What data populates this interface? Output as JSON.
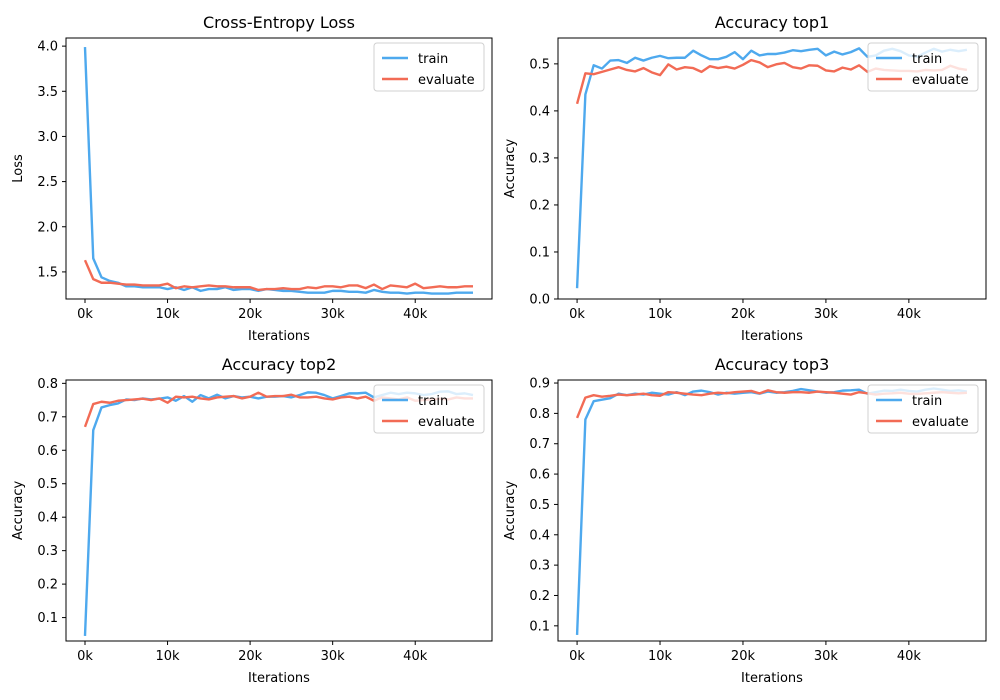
{
  "colors": {
    "train": "#4ea9ee",
    "evaluate": "#f26b55"
  },
  "legend": {
    "placement": "top-right",
    "entries": [
      "train",
      "evaluate"
    ]
  },
  "chart_data": [
    {
      "type": "line",
      "title": "Cross-Entropy Loss",
      "xlabel": "Iterations",
      "ylabel": "Loss",
      "xlim": [
        -2300,
        49300
      ],
      "ylim": [
        1.2,
        4.09
      ],
      "x_ticks": [
        0,
        10000,
        20000,
        30000,
        40000
      ],
      "x_tick_labels": [
        "0k",
        "10k",
        "20k",
        "30k",
        "40k"
      ],
      "y_ticks": [
        1.5,
        2.0,
        2.5,
        3.0,
        3.5,
        4.0
      ],
      "y_tick_labels": [
        "1.5",
        "2.0",
        "2.5",
        "3.0",
        "3.5",
        "4.0"
      ],
      "series": [
        {
          "name": "train",
          "x": [
            0,
            1000,
            2000,
            3000,
            4000,
            5000,
            6000,
            7000,
            8000,
            9000,
            10000,
            11000,
            12000,
            13000,
            14000,
            15000,
            16000,
            17000,
            18000,
            19000,
            20000,
            21000,
            22000,
            23000,
            24000,
            25000,
            26000,
            27000,
            28000,
            29000,
            30000,
            31000,
            32000,
            33000,
            34000,
            35000,
            36000,
            37000,
            38000,
            39000,
            40000,
            41000,
            42000,
            43000,
            44000,
            45000,
            46000,
            47000
          ],
          "y": [
            3.99,
            1.65,
            1.44,
            1.4,
            1.38,
            1.34,
            1.34,
            1.33,
            1.33,
            1.33,
            1.31,
            1.33,
            1.3,
            1.33,
            1.29,
            1.31,
            1.31,
            1.33,
            1.3,
            1.31,
            1.31,
            1.29,
            1.31,
            1.3,
            1.29,
            1.29,
            1.28,
            1.27,
            1.27,
            1.27,
            1.29,
            1.29,
            1.28,
            1.28,
            1.27,
            1.3,
            1.28,
            1.27,
            1.27,
            1.26,
            1.27,
            1.27,
            1.26,
            1.26,
            1.26,
            1.27,
            1.27,
            1.27
          ]
        },
        {
          "name": "evaluate",
          "x": [
            0,
            1000,
            2000,
            3000,
            4000,
            5000,
            6000,
            7000,
            8000,
            9000,
            10000,
            11000,
            12000,
            13000,
            14000,
            15000,
            16000,
            17000,
            18000,
            19000,
            20000,
            21000,
            22000,
            23000,
            24000,
            25000,
            26000,
            27000,
            28000,
            29000,
            30000,
            31000,
            32000,
            33000,
            34000,
            35000,
            36000,
            37000,
            38000,
            39000,
            40000,
            41000,
            42000,
            43000,
            44000,
            45000,
            46000,
            47000
          ],
          "y": [
            1.63,
            1.42,
            1.38,
            1.38,
            1.37,
            1.36,
            1.36,
            1.35,
            1.35,
            1.35,
            1.37,
            1.32,
            1.34,
            1.33,
            1.34,
            1.35,
            1.34,
            1.34,
            1.33,
            1.33,
            1.33,
            1.3,
            1.31,
            1.31,
            1.32,
            1.31,
            1.31,
            1.33,
            1.32,
            1.34,
            1.34,
            1.33,
            1.35,
            1.35,
            1.32,
            1.36,
            1.31,
            1.35,
            1.34,
            1.33,
            1.37,
            1.32,
            1.33,
            1.34,
            1.33,
            1.33,
            1.34,
            1.34
          ]
        }
      ]
    },
    {
      "type": "line",
      "title": "Accuracy top1",
      "xlabel": "Iterations",
      "ylabel": "Accuracy",
      "xlim": [
        -2300,
        49300
      ],
      "ylim": [
        0.0,
        0.555
      ],
      "x_ticks": [
        0,
        10000,
        20000,
        30000,
        40000
      ],
      "x_tick_labels": [
        "0k",
        "10k",
        "20k",
        "30k",
        "40k"
      ],
      "y_ticks": [
        0.0,
        0.1,
        0.2,
        0.3,
        0.4,
        0.5
      ],
      "y_tick_labels": [
        "0.0",
        "0.1",
        "0.2",
        "0.3",
        "0.4",
        "0.5"
      ],
      "series": [
        {
          "name": "train",
          "x": [
            0,
            1000,
            2000,
            3000,
            4000,
            5000,
            6000,
            7000,
            8000,
            9000,
            10000,
            11000,
            12000,
            13000,
            14000,
            15000,
            16000,
            17000,
            18000,
            19000,
            20000,
            21000,
            22000,
            23000,
            24000,
            25000,
            26000,
            27000,
            28000,
            29000,
            30000,
            31000,
            32000,
            33000,
            34000,
            35000,
            36000,
            37000,
            38000,
            39000,
            40000,
            41000,
            42000,
            43000,
            44000,
            45000,
            46000,
            47000
          ],
          "y": [
            0.023,
            0.435,
            0.497,
            0.49,
            0.507,
            0.508,
            0.502,
            0.513,
            0.507,
            0.513,
            0.517,
            0.512,
            0.513,
            0.513,
            0.528,
            0.518,
            0.51,
            0.51,
            0.515,
            0.525,
            0.51,
            0.528,
            0.518,
            0.521,
            0.521,
            0.524,
            0.529,
            0.527,
            0.53,
            0.532,
            0.518,
            0.526,
            0.52,
            0.525,
            0.533,
            0.515,
            0.518,
            0.528,
            0.532,
            0.527,
            0.518,
            0.515,
            0.524,
            0.532,
            0.526,
            0.53,
            0.527,
            0.53
          ]
        },
        {
          "name": "evaluate",
          "x": [
            0,
            1000,
            2000,
            3000,
            4000,
            5000,
            6000,
            7000,
            8000,
            9000,
            10000,
            11000,
            12000,
            13000,
            14000,
            15000,
            16000,
            17000,
            18000,
            19000,
            20000,
            21000,
            22000,
            23000,
            24000,
            25000,
            26000,
            27000,
            28000,
            29000,
            30000,
            31000,
            32000,
            33000,
            34000,
            35000,
            36000,
            37000,
            38000,
            39000,
            40000,
            41000,
            42000,
            43000,
            44000,
            45000,
            46000,
            47000
          ],
          "y": [
            0.415,
            0.48,
            0.478,
            0.483,
            0.488,
            0.493,
            0.487,
            0.484,
            0.491,
            0.482,
            0.476,
            0.499,
            0.488,
            0.493,
            0.491,
            0.483,
            0.495,
            0.491,
            0.494,
            0.49,
            0.498,
            0.508,
            0.503,
            0.493,
            0.499,
            0.502,
            0.493,
            0.49,
            0.497,
            0.496,
            0.486,
            0.484,
            0.492,
            0.488,
            0.497,
            0.483,
            0.49,
            0.487,
            0.486,
            0.485,
            0.485,
            0.484,
            0.487,
            0.486,
            0.487,
            0.496,
            0.49,
            0.487
          ]
        }
      ]
    },
    {
      "type": "line",
      "title": "Accuracy top2",
      "xlabel": "Iterations",
      "ylabel": "Accuracy",
      "xlim": [
        -2300,
        49300
      ],
      "ylim": [
        0.03,
        0.81
      ],
      "x_ticks": [
        0,
        10000,
        20000,
        30000,
        40000
      ],
      "x_tick_labels": [
        "0k",
        "10k",
        "20k",
        "30k",
        "40k"
      ],
      "y_ticks": [
        0.1,
        0.2,
        0.3,
        0.4,
        0.5,
        0.6,
        0.7,
        0.8
      ],
      "y_tick_labels": [
        "0.1",
        "0.2",
        "0.3",
        "0.4",
        "0.5",
        "0.6",
        "0.7",
        "0.8"
      ],
      "series": [
        {
          "name": "train",
          "x": [
            0,
            1000,
            2000,
            3000,
            4000,
            5000,
            6000,
            7000,
            8000,
            9000,
            10000,
            11000,
            12000,
            13000,
            14000,
            15000,
            16000,
            17000,
            18000,
            19000,
            20000,
            21000,
            22000,
            23000,
            24000,
            25000,
            26000,
            27000,
            28000,
            29000,
            30000,
            31000,
            32000,
            33000,
            34000,
            35000,
            36000,
            37000,
            38000,
            39000,
            40000,
            41000,
            42000,
            43000,
            44000,
            45000,
            46000,
            47000
          ],
          "y": [
            0.045,
            0.66,
            0.728,
            0.735,
            0.74,
            0.752,
            0.75,
            0.755,
            0.752,
            0.754,
            0.758,
            0.748,
            0.762,
            0.745,
            0.765,
            0.755,
            0.766,
            0.755,
            0.762,
            0.758,
            0.76,
            0.755,
            0.76,
            0.76,
            0.762,
            0.758,
            0.765,
            0.773,
            0.772,
            0.765,
            0.755,
            0.762,
            0.77,
            0.77,
            0.772,
            0.758,
            0.765,
            0.772,
            0.768,
            0.772,
            0.77,
            0.765,
            0.768,
            0.775,
            0.776,
            0.768,
            0.77,
            0.765
          ]
        },
        {
          "name": "evaluate",
          "x": [
            0,
            1000,
            2000,
            3000,
            4000,
            5000,
            6000,
            7000,
            8000,
            9000,
            10000,
            11000,
            12000,
            13000,
            14000,
            15000,
            16000,
            17000,
            18000,
            19000,
            20000,
            21000,
            22000,
            23000,
            24000,
            25000,
            26000,
            27000,
            28000,
            29000,
            30000,
            31000,
            32000,
            33000,
            34000,
            35000,
            36000,
            37000,
            38000,
            39000,
            40000,
            41000,
            42000,
            43000,
            44000,
            45000,
            46000,
            47000
          ],
          "y": [
            0.67,
            0.738,
            0.745,
            0.742,
            0.748,
            0.75,
            0.752,
            0.754,
            0.75,
            0.755,
            0.742,
            0.76,
            0.758,
            0.76,
            0.755,
            0.752,
            0.758,
            0.76,
            0.762,
            0.755,
            0.76,
            0.772,
            0.76,
            0.762,
            0.762,
            0.766,
            0.758,
            0.758,
            0.76,
            0.755,
            0.752,
            0.758,
            0.76,
            0.755,
            0.76,
            0.748,
            0.758,
            0.755,
            0.752,
            0.758,
            0.748,
            0.75,
            0.752,
            0.754,
            0.752,
            0.758,
            0.755,
            0.755
          ]
        }
      ]
    },
    {
      "type": "line",
      "title": "Accuracy top3",
      "xlabel": "Iterations",
      "ylabel": "Accuracy",
      "xlim": [
        -2300,
        49300
      ],
      "ylim": [
        0.05,
        0.91
      ],
      "x_ticks": [
        0,
        10000,
        20000,
        30000,
        40000
      ],
      "x_tick_labels": [
        "0k",
        "10k",
        "20k",
        "30k",
        "40k"
      ],
      "y_ticks": [
        0.1,
        0.2,
        0.3,
        0.4,
        0.5,
        0.6,
        0.7,
        0.8,
        0.9
      ],
      "y_tick_labels": [
        "0.1",
        "0.2",
        "0.3",
        "0.4",
        "0.5",
        "0.6",
        "0.7",
        "0.8",
        "0.9"
      ],
      "series": [
        {
          "name": "train",
          "x": [
            0,
            1000,
            2000,
            3000,
            4000,
            5000,
            6000,
            7000,
            8000,
            9000,
            10000,
            11000,
            12000,
            13000,
            14000,
            15000,
            16000,
            17000,
            18000,
            19000,
            20000,
            21000,
            22000,
            23000,
            24000,
            25000,
            26000,
            27000,
            28000,
            29000,
            30000,
            31000,
            32000,
            33000,
            34000,
            35000,
            36000,
            37000,
            38000,
            39000,
            40000,
            41000,
            42000,
            43000,
            44000,
            45000,
            46000,
            47000
          ],
          "y": [
            0.07,
            0.78,
            0.84,
            0.845,
            0.85,
            0.865,
            0.86,
            0.865,
            0.862,
            0.868,
            0.865,
            0.862,
            0.87,
            0.86,
            0.872,
            0.875,
            0.87,
            0.862,
            0.868,
            0.865,
            0.868,
            0.87,
            0.865,
            0.872,
            0.868,
            0.87,
            0.874,
            0.88,
            0.876,
            0.872,
            0.868,
            0.87,
            0.875,
            0.876,
            0.878,
            0.865,
            0.87,
            0.875,
            0.874,
            0.878,
            0.874,
            0.872,
            0.878,
            0.882,
            0.878,
            0.874,
            0.876,
            0.872
          ]
        },
        {
          "name": "evaluate",
          "x": [
            0,
            1000,
            2000,
            3000,
            4000,
            5000,
            6000,
            7000,
            8000,
            9000,
            10000,
            11000,
            12000,
            13000,
            14000,
            15000,
            16000,
            17000,
            18000,
            19000,
            20000,
            21000,
            22000,
            23000,
            24000,
            25000,
            26000,
            27000,
            28000,
            29000,
            30000,
            31000,
            32000,
            33000,
            34000,
            35000,
            36000,
            37000,
            38000,
            39000,
            40000,
            41000,
            42000,
            43000,
            44000,
            45000,
            46000,
            47000
          ],
          "y": [
            0.785,
            0.852,
            0.86,
            0.855,
            0.858,
            0.862,
            0.86,
            0.862,
            0.865,
            0.86,
            0.858,
            0.87,
            0.868,
            0.865,
            0.862,
            0.86,
            0.865,
            0.868,
            0.866,
            0.87,
            0.872,
            0.874,
            0.866,
            0.876,
            0.87,
            0.868,
            0.87,
            0.87,
            0.868,
            0.872,
            0.87,
            0.868,
            0.865,
            0.862,
            0.87,
            0.866,
            0.862,
            0.865,
            0.866,
            0.868,
            0.865,
            0.864,
            0.866,
            0.868,
            0.87,
            0.868,
            0.866,
            0.868
          ]
        }
      ]
    }
  ]
}
